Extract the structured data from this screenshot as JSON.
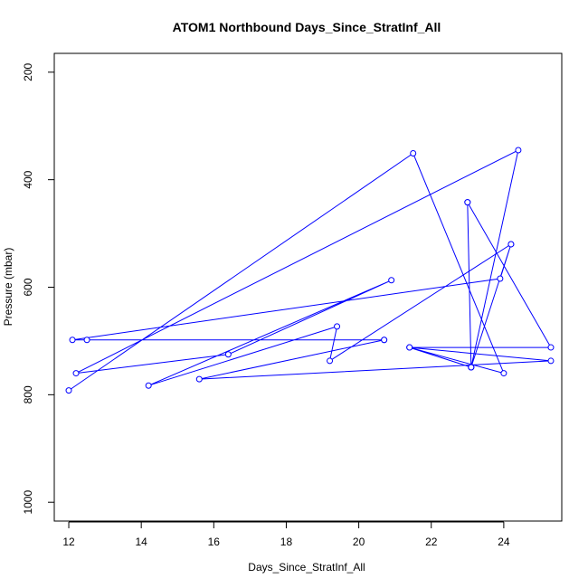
{
  "chart_data": {
    "type": "line",
    "title": "ATOM1 Northbound Days_Since_StratInf_All",
    "xlabel": "Days_Since_StratInf_All",
    "ylabel": "Pressure (mbar)",
    "xlim": [
      11.6,
      25.6
    ],
    "ylim": [
      1035,
      165
    ],
    "y_inverted": true,
    "x_ticks": [
      12,
      14,
      16,
      18,
      20,
      22,
      24
    ],
    "x_tick_labels": [
      "12",
      "14",
      "16",
      "18",
      "20",
      "22",
      "24"
    ],
    "y_ticks": [
      200,
      400,
      600,
      800,
      1000
    ],
    "y_tick_labels": [
      "200",
      "400",
      "600",
      "800",
      "1000"
    ],
    "grid": false,
    "series": [
      {
        "color": "#0000ff",
        "marker": "open-circle",
        "x": [
          12.0,
          21.5,
          24.0,
          21.4,
          23.1,
          23.0,
          23.1,
          24.2,
          23.9,
          12.1,
          20.7,
          12.5,
          20.7,
          15.6,
          25.3,
          21.4,
          25.3,
          23.0,
          23.1,
          24.4,
          12.2,
          16.4,
          20.9,
          14.2,
          19.4,
          19.2,
          24.2
        ],
        "y": [
          792,
          351,
          760,
          712,
          749,
          442,
          749,
          520,
          584,
          698,
          698,
          698,
          698,
          771,
          737,
          712,
          712,
          442,
          749,
          345,
          760,
          725,
          587,
          783,
          673,
          737,
          520
        ]
      }
    ]
  }
}
